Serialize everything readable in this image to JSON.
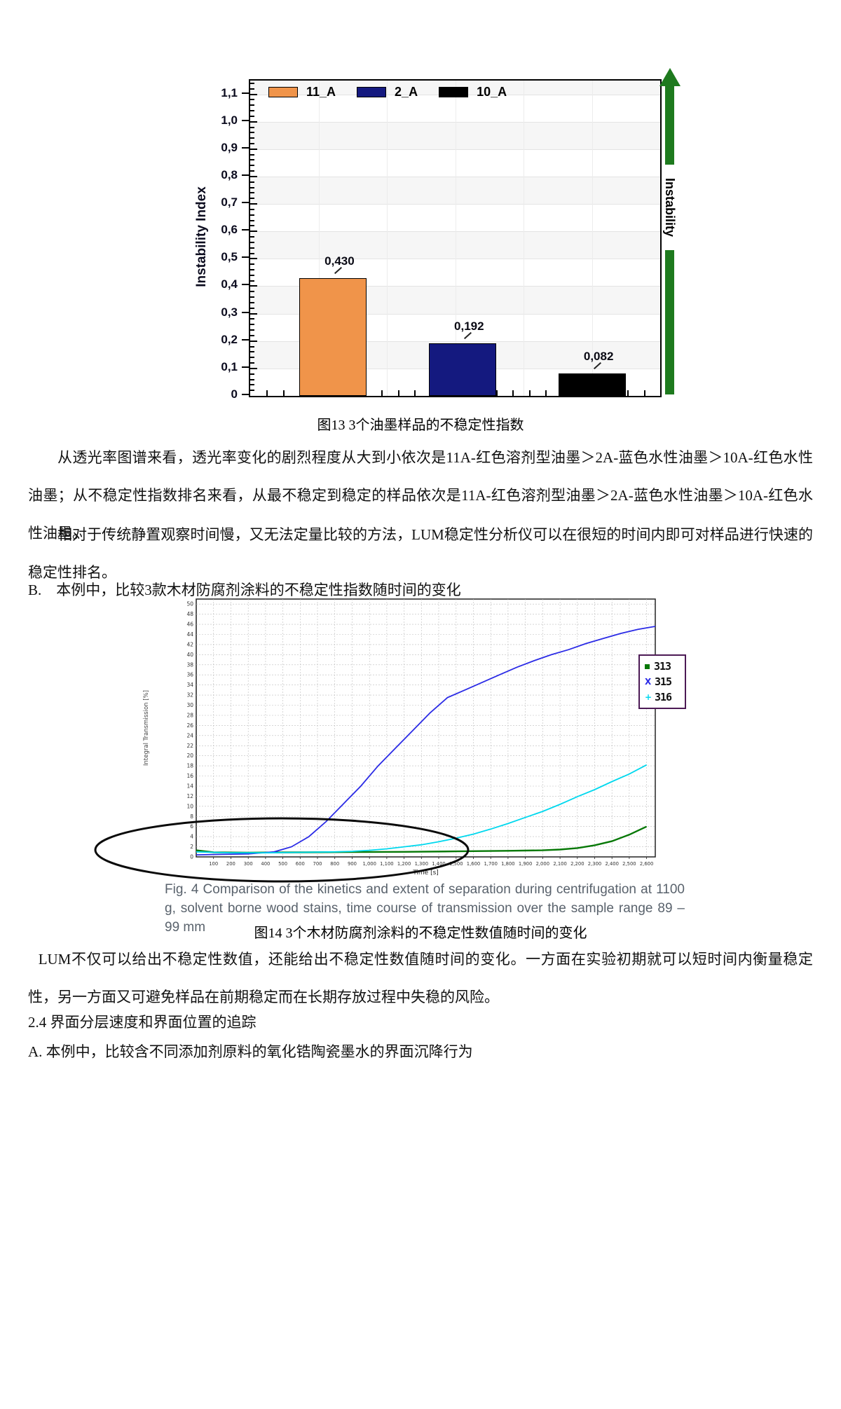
{
  "page_background": "#ffffff",
  "figure13": {
    "caption": "图13 3个油墨样品的不稳定性指数"
  },
  "body": {
    "p1": "从透光率图谱来看，透光率变化的剧烈程度从大到小依次是11A-红色溶剂型油墨＞2A-蓝色水性油墨＞10A-红色水性油墨；从不稳定性指数排名来看，从最不稳定到稳定的样品依次是11A-红色溶剂型油墨＞2A-蓝色水性油墨＞10A-红色水性油墨。",
    "p2": "相对于传统静置观察时间慢，又无法定量比较的方法，LUM稳定性分析仪可以在很短的时间内即可对样品进行快速的稳定性排名。",
    "item_b": "B.　本例中，比较3款木材防腐剂涂料的不稳定性指数随时间的变化",
    "p3": "LUM不仅可以给出不稳定性数值，还能给出不稳定性数值随时间的变化。一方面在实验初期就可以短时间内衡量稳定性，另一方面又可避免样品在前期稳定而在长期存放过程中失稳的风险。",
    "heading_24": "2.4 界面分层速度和界面位置的追踪",
    "item_a": "A. 本例中，比较含不同添加剂原料的氧化锆陶瓷墨水的界面沉降行为"
  },
  "figure14": {
    "caption_en": "Fig. 4 Comparison of the kinetics and extent of separation during centrifugation at 1100 g, solvent borne wood stains, time course of transmission over the sample range 89 – 99 mm",
    "caption": "图14 3个木材防腐剂涂料的不稳定性数值随时间的变化"
  },
  "chart_data": [
    {
      "type": "bar",
      "title": "",
      "xlabel": "",
      "ylabel": "Instability Index",
      "ylim": [
        0,
        1.15
      ],
      "ytick_step": 0.1,
      "decimal_style": "comma",
      "grid": true,
      "legend_position": "top-inside",
      "categories": [
        "11_A",
        "2_A",
        "10_A"
      ],
      "values": [
        0.43,
        0.192,
        0.082
      ],
      "value_labels": [
        "0,430",
        "0,192",
        "0,082"
      ],
      "bar_colors": [
        "#F0944A",
        "#14197F",
        "#000000"
      ],
      "side_arrow": {
        "label": "Instability",
        "color": "#1E7A1E",
        "direction": "up"
      }
    },
    {
      "type": "line",
      "title": "",
      "xlabel": "Time [s]",
      "ylabel": "Integral Transmission [%]",
      "xlim": [
        0,
        2650
      ],
      "ylim": [
        0,
        51
      ],
      "xtick_step": 100,
      "ytick_step": 2,
      "grid": "dashed",
      "legend_position": "right-outside",
      "legend_border_color": "#4c1a55",
      "annotation": "hand-drawn black ellipse circling the initial low-transmission region (0–1500 s, below ~8 %)",
      "series": [
        {
          "name": "313",
          "color": "#067806",
          "marker": "square",
          "points": [
            [
              0,
              1.3
            ],
            [
              100,
              0.9
            ],
            [
              300,
              0.85
            ],
            [
              600,
              0.9
            ],
            [
              900,
              0.95
            ],
            [
              1200,
              1.0
            ],
            [
              1500,
              1.1
            ],
            [
              1800,
              1.2
            ],
            [
              2000,
              1.3
            ],
            [
              2100,
              1.45
            ],
            [
              2200,
              1.75
            ],
            [
              2300,
              2.3
            ],
            [
              2400,
              3.1
            ],
            [
              2500,
              4.4
            ],
            [
              2600,
              6.0
            ]
          ]
        },
        {
          "name": "315",
          "color": "#2B2BE6",
          "marker": "x",
          "points": [
            [
              0,
              0.4
            ],
            [
              150,
              0.5
            ],
            [
              300,
              0.6
            ],
            [
              450,
              1.0
            ],
            [
              550,
              2.0
            ],
            [
              650,
              4.0
            ],
            [
              750,
              7.0
            ],
            [
              850,
              10.5
            ],
            [
              950,
              14.0
            ],
            [
              1050,
              18.0
            ],
            [
              1150,
              21.5
            ],
            [
              1250,
              25.0
            ],
            [
              1350,
              28.5
            ],
            [
              1450,
              31.5
            ],
            [
              1550,
              33.0
            ],
            [
              1650,
              34.5
            ],
            [
              1750,
              36.0
            ],
            [
              1850,
              37.5
            ],
            [
              1950,
              38.8
            ],
            [
              2050,
              40.0
            ],
            [
              2150,
              41.0
            ],
            [
              2250,
              42.2
            ],
            [
              2350,
              43.2
            ],
            [
              2450,
              44.2
            ],
            [
              2550,
              45.0
            ],
            [
              2650,
              45.6
            ]
          ]
        },
        {
          "name": "316",
          "color": "#00D8EE",
          "marker": "plus",
          "points": [
            [
              0,
              1.0
            ],
            [
              200,
              0.8
            ],
            [
              400,
              0.8
            ],
            [
              600,
              0.9
            ],
            [
              800,
              1.0
            ],
            [
              900,
              1.1
            ],
            [
              1000,
              1.3
            ],
            [
              1100,
              1.6
            ],
            [
              1200,
              2.0
            ],
            [
              1300,
              2.4
            ],
            [
              1400,
              3.0
            ],
            [
              1500,
              3.7
            ],
            [
              1600,
              4.5
            ],
            [
              1700,
              5.5
            ],
            [
              1800,
              6.6
            ],
            [
              1900,
              7.8
            ],
            [
              2000,
              9.0
            ],
            [
              2100,
              10.4
            ],
            [
              2200,
              11.9
            ],
            [
              2300,
              13.3
            ],
            [
              2400,
              14.9
            ],
            [
              2500,
              16.4
            ],
            [
              2600,
              18.2
            ]
          ]
        }
      ]
    }
  ]
}
